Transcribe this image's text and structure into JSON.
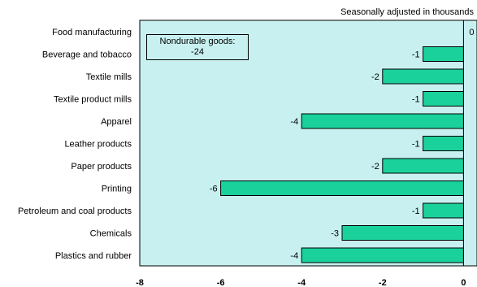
{
  "chart_data": {
    "type": "bar",
    "orientation": "horizontal",
    "note": "Seasonally adjusted in thousands",
    "callout": {
      "label": "Nondurable goods:",
      "value": "-24"
    },
    "categories": [
      "Food manufacturing",
      "Beverage and tobacco",
      "Textile mills",
      "Textile product mills",
      "Apparel",
      "Leather products",
      "Paper products",
      "Printing",
      "Petroleum and coal products",
      "Chemicals",
      "Plastics and rubber"
    ],
    "values": [
      0,
      -1,
      -2,
      -1,
      -4,
      -1,
      -2,
      -6,
      -1,
      -3,
      -4
    ],
    "xlim": [
      -8,
      2
    ],
    "xticks": [
      -8,
      -6,
      -4,
      -2,
      0,
      2
    ],
    "grid": false,
    "colors": {
      "bar": "#1ad19c",
      "plot_background": "#c8f0f0",
      "border": "#000000"
    }
  }
}
